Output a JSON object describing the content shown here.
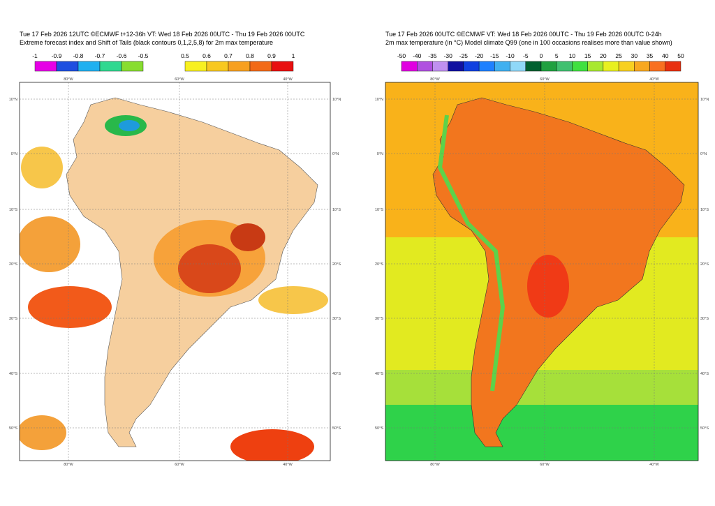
{
  "left": {
    "title_line1": "Tue 17 Feb 2026 12UTC ©ECMWF t+12-36h  VT: Wed 18 Feb 2026 00UTC - Thu 19 Feb 2026 00UTC",
    "title_line2": "Extreme forecast index and Shift of Tails (black contours 0,1,2,5,8) for 2m max temperature",
    "colorbar_negative": [
      "-1",
      "-0.9",
      "-0.8",
      "-0.7",
      "-0.6",
      "-0.5"
    ],
    "colorbar_positive": [
      "0.5",
      "0.6",
      "0.7",
      "0.8",
      "0.9",
      "1"
    ],
    "lat_labels": [
      "10°N",
      "0°N",
      "10°S",
      "20°S",
      "30°S",
      "40°S",
      "50°S"
    ],
    "lon_labels": [
      "80°W",
      "60°W",
      "40°W"
    ]
  },
  "right": {
    "title_line1": "Tue 17 Feb 2026 00UTC ©ECMWF VT: Wed 18 Feb 2026 00UTC - Thu 19 Feb 2026 00UTC   0-24h",
    "title_line2": "2m max temperature (in °C)  Model climate Q99 (one in 100 occasions realises more than value shown)",
    "colorbar": [
      "-50",
      "-40",
      "-35",
      "-30",
      "-25",
      "-20",
      "-15",
      "-10",
      "-5",
      "0",
      "5",
      "10",
      "15",
      "20",
      "25",
      "30",
      "35",
      "40",
      "50"
    ],
    "lat_labels": [
      "10°N",
      "0°N",
      "10°S",
      "20°S",
      "30°S",
      "40°S",
      "50°S"
    ],
    "lon_labels": [
      "80°W",
      "60°W",
      "40°W"
    ]
  }
}
